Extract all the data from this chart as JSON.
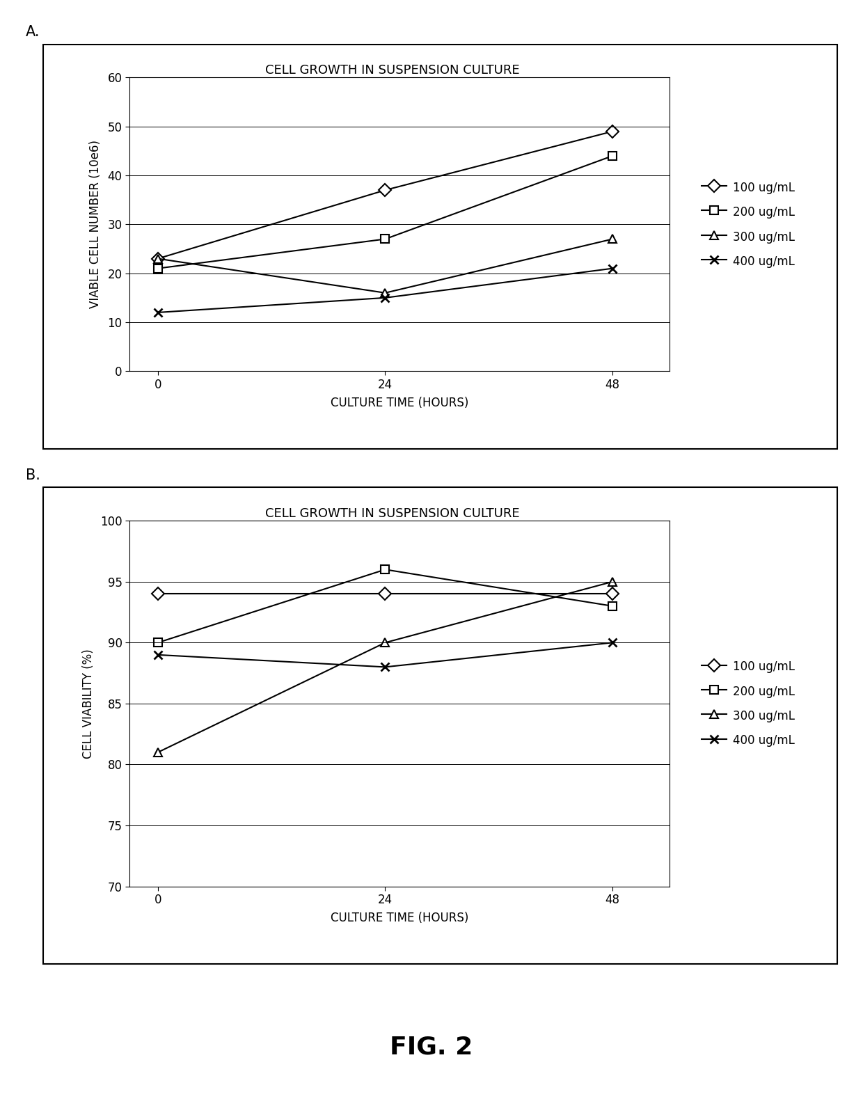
{
  "title_A": "CELL GROWTH IN SUSPENSION CULTURE",
  "title_B": "CELL GROWTH IN SUSPENSION CULTURE",
  "xlabel": "CULTURE TIME (HOURS)",
  "ylabel_A": "VIABLE CELL NUMBER (10e6)",
  "ylabel_B": "CELL VIABILITY (%)",
  "x_values": [
    0,
    24,
    48
  ],
  "legend_labels": [
    "100 ug/mL",
    "200 ug/mL",
    "300 ug/mL",
    "400 ug/mL"
  ],
  "series_A": {
    "100": [
      23,
      37,
      49
    ],
    "200": [
      21,
      27,
      44
    ],
    "300": [
      23,
      16,
      27
    ],
    "400": [
      12,
      15,
      21
    ]
  },
  "series_B": {
    "100": [
      94,
      94,
      94
    ],
    "200": [
      90,
      96,
      93
    ],
    "300": [
      81,
      90,
      95
    ],
    "400": [
      89,
      88,
      90
    ]
  },
  "ylim_A": [
    0,
    60
  ],
  "ylim_B": [
    70,
    100
  ],
  "yticks_A": [
    0,
    10,
    20,
    30,
    40,
    50,
    60
  ],
  "yticks_B": [
    70,
    75,
    80,
    85,
    90,
    95,
    100
  ],
  "label_A": "A.",
  "label_B": "B.",
  "fig_title": "FIG. 2",
  "bg_color": "#ffffff",
  "marker_100": "D",
  "marker_200": "s",
  "marker_300": "^",
  "marker_400": "x",
  "linewidth": 1.5,
  "markersize": 9
}
